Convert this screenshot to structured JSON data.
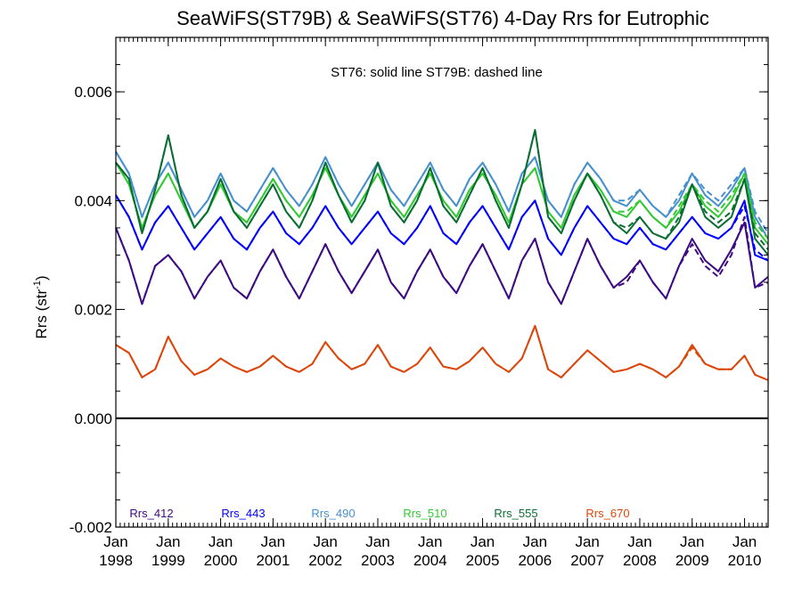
{
  "chart_data": {
    "type": "line",
    "title": "SeaWiFS(ST79B) & SeaWiFS(ST76) 4-Day Rrs for Eutrophic",
    "annotation": "ST76: solid line   ST79B: dashed line",
    "xlabel": "",
    "ylabel": "Rrs (str",
    "ylabel_superscript": "-1",
    "ylabel_close": ")",
    "xlim": [
      1998.0,
      2010.45
    ],
    "ylim": [
      -0.002,
      0.007
    ],
    "grid": false,
    "legend_position": "bottom",
    "x_ticks": [
      {
        "month": "Jan",
        "year": "1998"
      },
      {
        "month": "Jan",
        "year": "1999"
      },
      {
        "month": "Jan",
        "year": "2000"
      },
      {
        "month": "Jan",
        "year": "2001"
      },
      {
        "month": "Jan",
        "year": "2002"
      },
      {
        "month": "Jan",
        "year": "2003"
      },
      {
        "month": "Jan",
        "year": "2004"
      },
      {
        "month": "Jan",
        "year": "2005"
      },
      {
        "month": "Jan",
        "year": "2006"
      },
      {
        "month": "Jan",
        "year": "2007"
      },
      {
        "month": "Jan",
        "year": "2008"
      },
      {
        "month": "Jan",
        "year": "2009"
      },
      {
        "month": "Jan",
        "year": "2010"
      }
    ],
    "y_ticks": [
      "-0.002",
      "0.000",
      "0.002",
      "0.004",
      "0.006"
    ],
    "x": [
      1998.0,
      1998.25,
      1998.5,
      1998.75,
      1999.0,
      1999.25,
      1999.5,
      1999.75,
      2000.0,
      2000.25,
      2000.5,
      2000.75,
      2001.0,
      2001.25,
      2001.5,
      2001.75,
      2002.0,
      2002.25,
      2002.5,
      2002.75,
      2003.0,
      2003.25,
      2003.5,
      2003.75,
      2004.0,
      2004.25,
      2004.5,
      2004.75,
      2005.0,
      2005.25,
      2005.5,
      2005.75,
      2006.0,
      2006.25,
      2006.5,
      2006.75,
      2007.0,
      2007.25,
      2007.5,
      2007.75,
      2008.0,
      2008.25,
      2008.5,
      2008.75,
      2009.0,
      2009.25,
      2009.5,
      2009.75,
      2010.0,
      2010.2,
      2010.45
    ],
    "series": [
      {
        "name": "Rrs_412",
        "color": "#3c0a82",
        "values": [
          0.0035,
          0.0029,
          0.0021,
          0.0028,
          0.003,
          0.0027,
          0.0022,
          0.0026,
          0.0029,
          0.0024,
          0.0022,
          0.0027,
          0.0031,
          0.0026,
          0.0022,
          0.0027,
          0.0032,
          0.0027,
          0.0023,
          0.0027,
          0.0031,
          0.0025,
          0.0022,
          0.0027,
          0.0031,
          0.0026,
          0.0023,
          0.0028,
          0.0032,
          0.0027,
          0.0022,
          0.0029,
          0.0033,
          0.0025,
          0.0021,
          0.0027,
          0.0033,
          0.0028,
          0.0024,
          0.0026,
          0.0029,
          0.0025,
          0.0022,
          0.0028,
          0.0033,
          0.0029,
          0.0027,
          0.0031,
          0.0036,
          0.0024,
          0.0026
        ],
        "dashed_values": [
          0.0035,
          0.0029,
          0.0021,
          0.0028,
          0.003,
          0.0027,
          0.0022,
          0.0026,
          0.0029,
          0.0024,
          0.0022,
          0.0027,
          0.0031,
          0.0026,
          0.0022,
          0.0027,
          0.0032,
          0.0027,
          0.0023,
          0.0027,
          0.0031,
          0.0025,
          0.0022,
          0.0027,
          0.0031,
          0.0026,
          0.0023,
          0.0028,
          0.0032,
          0.0027,
          0.0022,
          0.0029,
          0.0033,
          0.0025,
          0.0021,
          0.0027,
          0.0033,
          0.0028,
          0.0024,
          0.0025,
          0.0029,
          0.0025,
          0.0022,
          0.0028,
          0.0032,
          0.0028,
          0.0026,
          0.003,
          0.0037,
          0.0024,
          0.0025
        ]
      },
      {
        "name": "Rrs_443",
        "color": "#0000ff",
        "values": [
          0.0041,
          0.0037,
          0.0031,
          0.0036,
          0.0039,
          0.0035,
          0.0031,
          0.0034,
          0.0037,
          0.0033,
          0.0031,
          0.0035,
          0.0038,
          0.0034,
          0.0032,
          0.0035,
          0.0039,
          0.0035,
          0.0032,
          0.0035,
          0.0038,
          0.0034,
          0.0032,
          0.0035,
          0.0039,
          0.0034,
          0.0032,
          0.0036,
          0.0039,
          0.0035,
          0.0031,
          0.0037,
          0.004,
          0.0033,
          0.003,
          0.0035,
          0.0039,
          0.0036,
          0.0033,
          0.0032,
          0.0035,
          0.0032,
          0.0031,
          0.0034,
          0.0037,
          0.0034,
          0.0033,
          0.0035,
          0.004,
          0.003,
          0.0029
        ],
        "dashed_values": [
          0.0041,
          0.0037,
          0.0031,
          0.0036,
          0.0039,
          0.0035,
          0.0031,
          0.0034,
          0.0037,
          0.0033,
          0.0031,
          0.0035,
          0.0038,
          0.0034,
          0.0032,
          0.0035,
          0.0039,
          0.0035,
          0.0032,
          0.0035,
          0.0038,
          0.0034,
          0.0032,
          0.0035,
          0.0039,
          0.0034,
          0.0032,
          0.0036,
          0.0039,
          0.0035,
          0.0031,
          0.0037,
          0.004,
          0.0033,
          0.003,
          0.0035,
          0.0039,
          0.0036,
          0.0033,
          0.0032,
          0.0035,
          0.0032,
          0.0031,
          0.0034,
          0.0037,
          0.0034,
          0.0033,
          0.0035,
          0.0039,
          0.0031,
          0.0029
        ]
      },
      {
        "name": "Rrs_490",
        "color": "#4690cd",
        "values": [
          0.0049,
          0.0045,
          0.0037,
          0.0043,
          0.0047,
          0.0042,
          0.0037,
          0.004,
          0.0045,
          0.004,
          0.0038,
          0.0042,
          0.0046,
          0.0042,
          0.0039,
          0.0043,
          0.0048,
          0.0043,
          0.0039,
          0.0043,
          0.0047,
          0.0042,
          0.0039,
          0.0043,
          0.0047,
          0.0042,
          0.0039,
          0.0044,
          0.0047,
          0.0043,
          0.0038,
          0.0045,
          0.0048,
          0.004,
          0.0037,
          0.0043,
          0.0047,
          0.0044,
          0.004,
          0.0039,
          0.0042,
          0.0039,
          0.0037,
          0.004,
          0.0045,
          0.0041,
          0.0039,
          0.0042,
          0.0046,
          0.0037,
          0.0033
        ],
        "dashed_values": [
          0.0049,
          0.0045,
          0.0037,
          0.0043,
          0.0047,
          0.0042,
          0.0037,
          0.004,
          0.0045,
          0.004,
          0.0038,
          0.0042,
          0.0046,
          0.0042,
          0.0039,
          0.0043,
          0.0048,
          0.0043,
          0.0039,
          0.0043,
          0.0047,
          0.0042,
          0.0039,
          0.0043,
          0.0047,
          0.0042,
          0.0039,
          0.0044,
          0.0047,
          0.0043,
          0.0038,
          0.0045,
          0.0048,
          0.004,
          0.0037,
          0.0043,
          0.0047,
          0.0044,
          0.004,
          0.004,
          0.0042,
          0.0039,
          0.0037,
          0.0041,
          0.0045,
          0.0042,
          0.004,
          0.0043,
          0.0046,
          0.0038,
          0.0034
        ]
      },
      {
        "name": "Rrs_510",
        "color": "#32c832",
        "values": [
          0.0047,
          0.0043,
          0.0035,
          0.0041,
          0.0045,
          0.004,
          0.0035,
          0.0038,
          0.0043,
          0.0038,
          0.0036,
          0.004,
          0.0044,
          0.004,
          0.0037,
          0.0041,
          0.0046,
          0.0041,
          0.0037,
          0.0041,
          0.0045,
          0.004,
          0.0037,
          0.0041,
          0.0045,
          0.004,
          0.0037,
          0.0042,
          0.0045,
          0.0041,
          0.0036,
          0.0043,
          0.0046,
          0.0038,
          0.0035,
          0.0041,
          0.0045,
          0.0042,
          0.0038,
          0.0037,
          0.004,
          0.0037,
          0.0035,
          0.0038,
          0.0043,
          0.0039,
          0.0037,
          0.004,
          0.0045,
          0.0035,
          0.0032
        ],
        "dashed_values": [
          0.0047,
          0.0043,
          0.0035,
          0.0041,
          0.0045,
          0.004,
          0.0035,
          0.0038,
          0.0043,
          0.0038,
          0.0036,
          0.004,
          0.0044,
          0.004,
          0.0037,
          0.0041,
          0.0046,
          0.0041,
          0.0037,
          0.0041,
          0.0045,
          0.004,
          0.0037,
          0.0041,
          0.0045,
          0.004,
          0.0037,
          0.0042,
          0.0045,
          0.0041,
          0.0036,
          0.0043,
          0.0046,
          0.0038,
          0.0035,
          0.0041,
          0.0045,
          0.0042,
          0.0038,
          0.0038,
          0.004,
          0.0037,
          0.0035,
          0.0039,
          0.0043,
          0.004,
          0.0038,
          0.0041,
          0.0045,
          0.0036,
          0.0033
        ]
      },
      {
        "name": "Rrs_555",
        "color": "#0a6e32",
        "values": [
          0.0047,
          0.0044,
          0.0034,
          0.0042,
          0.0052,
          0.0041,
          0.0035,
          0.0038,
          0.0044,
          0.0038,
          0.0035,
          0.0039,
          0.0043,
          0.0038,
          0.0035,
          0.004,
          0.0047,
          0.0041,
          0.0036,
          0.004,
          0.0047,
          0.0039,
          0.0036,
          0.004,
          0.0046,
          0.0039,
          0.0036,
          0.0041,
          0.0046,
          0.004,
          0.0035,
          0.0043,
          0.0053,
          0.0037,
          0.0034,
          0.004,
          0.0045,
          0.0041,
          0.0036,
          0.0034,
          0.0037,
          0.0034,
          0.0033,
          0.0036,
          0.0043,
          0.0037,
          0.0035,
          0.0037,
          0.0044,
          0.0033,
          0.003
        ],
        "dashed_values": [
          0.0047,
          0.0044,
          0.0034,
          0.0042,
          0.0052,
          0.0041,
          0.0035,
          0.0038,
          0.0044,
          0.0038,
          0.0035,
          0.0039,
          0.0043,
          0.0038,
          0.0035,
          0.004,
          0.0047,
          0.0041,
          0.0036,
          0.004,
          0.0047,
          0.0039,
          0.0036,
          0.004,
          0.0046,
          0.0039,
          0.0036,
          0.0041,
          0.0046,
          0.004,
          0.0035,
          0.0043,
          0.0053,
          0.0037,
          0.0034,
          0.004,
          0.0045,
          0.0041,
          0.0036,
          0.0035,
          0.0037,
          0.0034,
          0.0033,
          0.0037,
          0.0043,
          0.0038,
          0.0036,
          0.0038,
          0.0044,
          0.0034,
          0.0031
        ]
      },
      {
        "name": "Rrs_670",
        "color": "#dc460a",
        "values": [
          0.00135,
          0.0012,
          0.00075,
          0.0009,
          0.0015,
          0.00105,
          0.0008,
          0.0009,
          0.0011,
          0.00095,
          0.00085,
          0.00095,
          0.00115,
          0.00095,
          0.00085,
          0.001,
          0.0014,
          0.0011,
          0.0009,
          0.001,
          0.00135,
          0.00095,
          0.00085,
          0.001,
          0.0013,
          0.00095,
          0.0009,
          0.00105,
          0.0013,
          0.001,
          0.00085,
          0.0011,
          0.0017,
          0.0009,
          0.00075,
          0.001,
          0.00125,
          0.00105,
          0.00085,
          0.0009,
          0.001,
          0.0009,
          0.00075,
          0.00095,
          0.00135,
          0.001,
          0.0009,
          0.0009,
          0.00115,
          0.0008,
          0.0007
        ],
        "dashed_values": [
          0.00135,
          0.0012,
          0.00075,
          0.0009,
          0.0015,
          0.00105,
          0.0008,
          0.0009,
          0.0011,
          0.00095,
          0.00085,
          0.00095,
          0.00115,
          0.00095,
          0.00085,
          0.001,
          0.0014,
          0.0011,
          0.0009,
          0.001,
          0.00135,
          0.00095,
          0.00085,
          0.001,
          0.0013,
          0.00095,
          0.0009,
          0.00105,
          0.0013,
          0.001,
          0.00085,
          0.0011,
          0.0017,
          0.0009,
          0.00075,
          0.001,
          0.00125,
          0.00105,
          0.00085,
          0.0009,
          0.001,
          0.0009,
          0.00075,
          0.00095,
          0.0013,
          0.001,
          0.0009,
          0.0009,
          0.00115,
          0.0008,
          0.0007
        ]
      }
    ]
  }
}
